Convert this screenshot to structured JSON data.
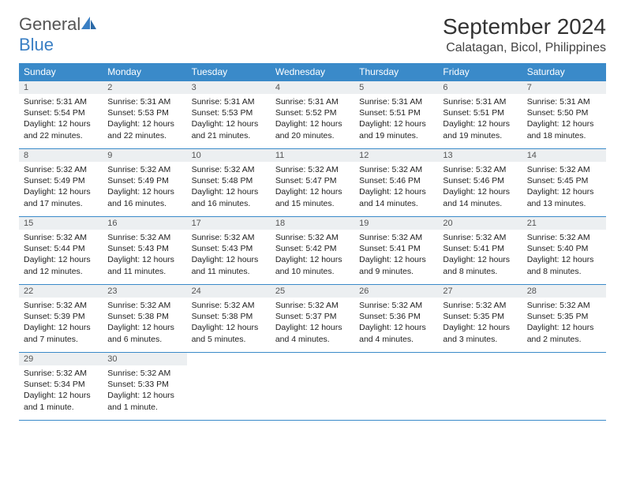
{
  "logo": {
    "word1": "General",
    "word2": "Blue"
  },
  "title": "September 2024",
  "location": "Calatagan, Bicol, Philippines",
  "colors": {
    "header_bg": "#3a8ac9",
    "header_text": "#ffffff",
    "daynum_bg": "#eceff1",
    "border": "#3a8ac9",
    "logo_blue": "#3a7fc4",
    "text": "#222222",
    "page_bg": "#ffffff"
  },
  "weekdays": [
    "Sunday",
    "Monday",
    "Tuesday",
    "Wednesday",
    "Thursday",
    "Friday",
    "Saturday"
  ],
  "weeks": [
    [
      {
        "n": "1",
        "sr": "Sunrise: 5:31 AM",
        "ss": "Sunset: 5:54 PM",
        "d1": "Daylight: 12 hours",
        "d2": "and 22 minutes."
      },
      {
        "n": "2",
        "sr": "Sunrise: 5:31 AM",
        "ss": "Sunset: 5:53 PM",
        "d1": "Daylight: 12 hours",
        "d2": "and 22 minutes."
      },
      {
        "n": "3",
        "sr": "Sunrise: 5:31 AM",
        "ss": "Sunset: 5:53 PM",
        "d1": "Daylight: 12 hours",
        "d2": "and 21 minutes."
      },
      {
        "n": "4",
        "sr": "Sunrise: 5:31 AM",
        "ss": "Sunset: 5:52 PM",
        "d1": "Daylight: 12 hours",
        "d2": "and 20 minutes."
      },
      {
        "n": "5",
        "sr": "Sunrise: 5:31 AM",
        "ss": "Sunset: 5:51 PM",
        "d1": "Daylight: 12 hours",
        "d2": "and 19 minutes."
      },
      {
        "n": "6",
        "sr": "Sunrise: 5:31 AM",
        "ss": "Sunset: 5:51 PM",
        "d1": "Daylight: 12 hours",
        "d2": "and 19 minutes."
      },
      {
        "n": "7",
        "sr": "Sunrise: 5:31 AM",
        "ss": "Sunset: 5:50 PM",
        "d1": "Daylight: 12 hours",
        "d2": "and 18 minutes."
      }
    ],
    [
      {
        "n": "8",
        "sr": "Sunrise: 5:32 AM",
        "ss": "Sunset: 5:49 PM",
        "d1": "Daylight: 12 hours",
        "d2": "and 17 minutes."
      },
      {
        "n": "9",
        "sr": "Sunrise: 5:32 AM",
        "ss": "Sunset: 5:49 PM",
        "d1": "Daylight: 12 hours",
        "d2": "and 16 minutes."
      },
      {
        "n": "10",
        "sr": "Sunrise: 5:32 AM",
        "ss": "Sunset: 5:48 PM",
        "d1": "Daylight: 12 hours",
        "d2": "and 16 minutes."
      },
      {
        "n": "11",
        "sr": "Sunrise: 5:32 AM",
        "ss": "Sunset: 5:47 PM",
        "d1": "Daylight: 12 hours",
        "d2": "and 15 minutes."
      },
      {
        "n": "12",
        "sr": "Sunrise: 5:32 AM",
        "ss": "Sunset: 5:46 PM",
        "d1": "Daylight: 12 hours",
        "d2": "and 14 minutes."
      },
      {
        "n": "13",
        "sr": "Sunrise: 5:32 AM",
        "ss": "Sunset: 5:46 PM",
        "d1": "Daylight: 12 hours",
        "d2": "and 14 minutes."
      },
      {
        "n": "14",
        "sr": "Sunrise: 5:32 AM",
        "ss": "Sunset: 5:45 PM",
        "d1": "Daylight: 12 hours",
        "d2": "and 13 minutes."
      }
    ],
    [
      {
        "n": "15",
        "sr": "Sunrise: 5:32 AM",
        "ss": "Sunset: 5:44 PM",
        "d1": "Daylight: 12 hours",
        "d2": "and 12 minutes."
      },
      {
        "n": "16",
        "sr": "Sunrise: 5:32 AM",
        "ss": "Sunset: 5:43 PM",
        "d1": "Daylight: 12 hours",
        "d2": "and 11 minutes."
      },
      {
        "n": "17",
        "sr": "Sunrise: 5:32 AM",
        "ss": "Sunset: 5:43 PM",
        "d1": "Daylight: 12 hours",
        "d2": "and 11 minutes."
      },
      {
        "n": "18",
        "sr": "Sunrise: 5:32 AM",
        "ss": "Sunset: 5:42 PM",
        "d1": "Daylight: 12 hours",
        "d2": "and 10 minutes."
      },
      {
        "n": "19",
        "sr": "Sunrise: 5:32 AM",
        "ss": "Sunset: 5:41 PM",
        "d1": "Daylight: 12 hours",
        "d2": "and 9 minutes."
      },
      {
        "n": "20",
        "sr": "Sunrise: 5:32 AM",
        "ss": "Sunset: 5:41 PM",
        "d1": "Daylight: 12 hours",
        "d2": "and 8 minutes."
      },
      {
        "n": "21",
        "sr": "Sunrise: 5:32 AM",
        "ss": "Sunset: 5:40 PM",
        "d1": "Daylight: 12 hours",
        "d2": "and 8 minutes."
      }
    ],
    [
      {
        "n": "22",
        "sr": "Sunrise: 5:32 AM",
        "ss": "Sunset: 5:39 PM",
        "d1": "Daylight: 12 hours",
        "d2": "and 7 minutes."
      },
      {
        "n": "23",
        "sr": "Sunrise: 5:32 AM",
        "ss": "Sunset: 5:38 PM",
        "d1": "Daylight: 12 hours",
        "d2": "and 6 minutes."
      },
      {
        "n": "24",
        "sr": "Sunrise: 5:32 AM",
        "ss": "Sunset: 5:38 PM",
        "d1": "Daylight: 12 hours",
        "d2": "and 5 minutes."
      },
      {
        "n": "25",
        "sr": "Sunrise: 5:32 AM",
        "ss": "Sunset: 5:37 PM",
        "d1": "Daylight: 12 hours",
        "d2": "and 4 minutes."
      },
      {
        "n": "26",
        "sr": "Sunrise: 5:32 AM",
        "ss": "Sunset: 5:36 PM",
        "d1": "Daylight: 12 hours",
        "d2": "and 4 minutes."
      },
      {
        "n": "27",
        "sr": "Sunrise: 5:32 AM",
        "ss": "Sunset: 5:35 PM",
        "d1": "Daylight: 12 hours",
        "d2": "and 3 minutes."
      },
      {
        "n": "28",
        "sr": "Sunrise: 5:32 AM",
        "ss": "Sunset: 5:35 PM",
        "d1": "Daylight: 12 hours",
        "d2": "and 2 minutes."
      }
    ],
    [
      {
        "n": "29",
        "sr": "Sunrise: 5:32 AM",
        "ss": "Sunset: 5:34 PM",
        "d1": "Daylight: 12 hours",
        "d2": "and 1 minute."
      },
      {
        "n": "30",
        "sr": "Sunrise: 5:32 AM",
        "ss": "Sunset: 5:33 PM",
        "d1": "Daylight: 12 hours",
        "d2": "and 1 minute."
      },
      {
        "empty": true
      },
      {
        "empty": true
      },
      {
        "empty": true
      },
      {
        "empty": true
      },
      {
        "empty": true
      }
    ]
  ]
}
